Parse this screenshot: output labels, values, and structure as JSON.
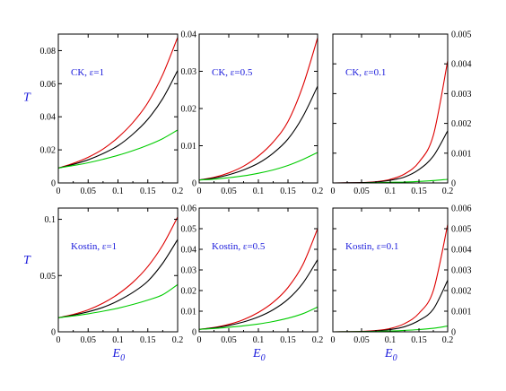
{
  "colors": {
    "red": "#dd0000",
    "black": "#000000",
    "green": "#00cc00",
    "label": "#1a1adb"
  },
  "chart_data": [
    {
      "type": "line",
      "annotation": "CK, ε=1",
      "xlim": [
        0,
        0.2
      ],
      "ylim": [
        0,
        0.09
      ],
      "xticks": [
        0,
        0.05,
        0.1,
        0.15,
        0.2
      ],
      "xtick_labels": [
        "0",
        "0.05",
        "0.1",
        "0.15",
        "0.2"
      ],
      "yticks": [
        0,
        0.02,
        0.04,
        0.06,
        0.08
      ],
      "ytick_labels": [
        "0",
        "0.02",
        "0.04",
        "0.06",
        "0.08"
      ],
      "ytick_side": "left",
      "ylabel": "T",
      "xlabel": "",
      "x": [
        0,
        0.025,
        0.05,
        0.075,
        0.1,
        0.125,
        0.15,
        0.175,
        0.2
      ],
      "series": [
        {
          "color": "red",
          "values": [
            0.009,
            0.0118,
            0.0155,
            0.0205,
            0.0275,
            0.0365,
            0.0485,
            0.0655,
            0.088
          ]
        },
        {
          "color": "black",
          "values": [
            0.009,
            0.0112,
            0.014,
            0.0178,
            0.0225,
            0.0295,
            0.0385,
            0.051,
            0.068
          ]
        },
        {
          "color": "green",
          "values": [
            0.009,
            0.0105,
            0.0122,
            0.0143,
            0.0167,
            0.0195,
            0.0228,
            0.0268,
            0.032
          ]
        }
      ]
    },
    {
      "type": "line",
      "annotation": "CK, ε=0.5",
      "xlim": [
        0,
        0.2
      ],
      "ylim": [
        0,
        0.04
      ],
      "xticks": [
        0,
        0.05,
        0.1,
        0.15,
        0.2
      ],
      "xtick_labels": [
        "0",
        "0.05",
        "0.1",
        "0.15",
        "0.2"
      ],
      "yticks": [
        0,
        0.01,
        0.02,
        0.03,
        0.04
      ],
      "ytick_labels": [
        "0",
        "0.01",
        "0.02",
        "0.03",
        "0.04"
      ],
      "ytick_side": "left",
      "ylabel": "",
      "xlabel": "",
      "x": [
        0,
        0.025,
        0.05,
        0.075,
        0.1,
        0.125,
        0.15,
        0.175,
        0.2
      ],
      "series": [
        {
          "color": "red",
          "values": [
            0.0008,
            0.0015,
            0.0027,
            0.0045,
            0.0072,
            0.011,
            0.0165,
            0.026,
            0.039
          ]
        },
        {
          "color": "black",
          "values": [
            0.0008,
            0.0013,
            0.0022,
            0.0035,
            0.0053,
            0.008,
            0.0118,
            0.0178,
            0.026
          ]
        },
        {
          "color": "green",
          "values": [
            0.0008,
            0.001,
            0.0014,
            0.0019,
            0.0026,
            0.0035,
            0.0047,
            0.0063,
            0.0082
          ]
        }
      ]
    },
    {
      "type": "line",
      "annotation": "CK, ε=0.1",
      "xlim": [
        0,
        0.2
      ],
      "ylim": [
        0,
        0.005
      ],
      "xticks": [
        0,
        0.05,
        0.1,
        0.15,
        0.2
      ],
      "xtick_labels": [
        "0",
        "0.05",
        "0.1",
        "0.15",
        "0.2"
      ],
      "yticks": [
        0,
        0.001,
        0.002,
        0.003,
        0.004,
        0.005
      ],
      "ytick_labels": [
        "0",
        "0.001",
        "0.002",
        "0.003",
        "0.004",
        "0.005"
      ],
      "ytick_side": "right",
      "ylabel": "",
      "xlabel": "",
      "x": [
        0,
        0.05,
        0.075,
        0.1,
        0.125,
        0.15,
        0.175,
        0.2
      ],
      "series": [
        {
          "color": "red",
          "values": [
            0,
            1e-05,
            4e-05,
            0.00012,
            0.0003,
            0.0007,
            0.0016,
            0.0041
          ]
        },
        {
          "color": "black",
          "values": [
            0,
            1e-05,
            3e-05,
            9e-05,
            0.0002,
            0.00045,
            0.0009,
            0.00175
          ]
        },
        {
          "color": "green",
          "values": [
            0,
            0,
            1e-05,
            2e-05,
            3e-05,
            5e-05,
            8e-05,
            0.00012
          ]
        }
      ]
    },
    {
      "type": "line",
      "annotation": "Kostin, ε=1",
      "xlim": [
        0,
        0.2
      ],
      "ylim": [
        0,
        0.11
      ],
      "xticks": [
        0,
        0.05,
        0.1,
        0.15,
        0.2
      ],
      "xtick_labels": [
        "0",
        "0.05",
        "0.1",
        "0.15",
        "0.2"
      ],
      "yticks": [
        0,
        0.05,
        0.1
      ],
      "ytick_labels": [
        "0",
        "0.05",
        "0.1"
      ],
      "ytick_side": "left",
      "ylabel": "T",
      "xlabel": "E0",
      "x": [
        0,
        0.025,
        0.05,
        0.075,
        0.1,
        0.125,
        0.15,
        0.175,
        0.2
      ],
      "series": [
        {
          "color": "red",
          "values": [
            0.0125,
            0.0155,
            0.0195,
            0.0255,
            0.0335,
            0.044,
            0.058,
            0.077,
            0.102
          ]
        },
        {
          "color": "black",
          "values": [
            0.0125,
            0.0148,
            0.0178,
            0.0218,
            0.0275,
            0.035,
            0.045,
            0.061,
            0.082
          ]
        },
        {
          "color": "green",
          "values": [
            0.0125,
            0.0141,
            0.016,
            0.0183,
            0.021,
            0.0243,
            0.0282,
            0.033,
            0.042
          ]
        }
      ]
    },
    {
      "type": "line",
      "annotation": "Kostin, ε=0.5",
      "xlim": [
        0,
        0.2
      ],
      "ylim": [
        0,
        0.06
      ],
      "xticks": [
        0,
        0.05,
        0.1,
        0.15,
        0.2
      ],
      "xtick_labels": [
        "0",
        "0.05",
        "0.1",
        "0.15",
        "0.2"
      ],
      "yticks": [
        0,
        0.01,
        0.02,
        0.03,
        0.04,
        0.05,
        0.06
      ],
      "ytick_labels": [
        "0",
        "0.01",
        "0.02",
        "0.03",
        "0.04",
        "0.05",
        "0.06"
      ],
      "ytick_side": "left",
      "ylabel": "",
      "xlabel": "E0",
      "x": [
        0,
        0.025,
        0.05,
        0.075,
        0.1,
        0.125,
        0.15,
        0.175,
        0.2
      ],
      "series": [
        {
          "color": "red",
          "values": [
            0.0012,
            0.0021,
            0.0036,
            0.0059,
            0.0094,
            0.0143,
            0.0215,
            0.0325,
            0.05
          ]
        },
        {
          "color": "black",
          "values": [
            0.0012,
            0.0019,
            0.0031,
            0.0048,
            0.0072,
            0.0107,
            0.0158,
            0.0235,
            0.035
          ]
        },
        {
          "color": "green",
          "values": [
            0.0012,
            0.0016,
            0.0022,
            0.0029,
            0.0038,
            0.005,
            0.0066,
            0.0088,
            0.012
          ]
        }
      ]
    },
    {
      "type": "line",
      "annotation": "Kostin, ε=0.1",
      "xlim": [
        0,
        0.2
      ],
      "ylim": [
        0,
        0.006
      ],
      "xticks": [
        0,
        0.05,
        0.1,
        0.15,
        0.2
      ],
      "xtick_labels": [
        "0",
        "0.05",
        "0.1",
        "0.15",
        "0.2"
      ],
      "yticks": [
        0,
        0.001,
        0.002,
        0.003,
        0.004,
        0.005,
        0.006
      ],
      "ytick_labels": [
        "0",
        "0.001",
        "0.002",
        "0.003",
        "0.004",
        "0.005",
        "0.006"
      ],
      "ytick_side": "right",
      "ylabel": "",
      "xlabel": "E0",
      "x": [
        0,
        0.05,
        0.075,
        0.1,
        0.125,
        0.15,
        0.175,
        0.2
      ],
      "series": [
        {
          "color": "red",
          "values": [
            0,
            2e-05,
            6e-05,
            0.00016,
            0.0004,
            0.0009,
            0.002,
            0.0052
          ]
        },
        {
          "color": "black",
          "values": [
            0,
            1e-05,
            4e-05,
            0.00011,
            0.00025,
            0.00055,
            0.0011,
            0.0025
          ]
        },
        {
          "color": "green",
          "values": [
            0,
            1e-05,
            2e-05,
            4e-05,
            7e-05,
            0.00011,
            0.00017,
            0.00028
          ]
        }
      ]
    }
  ]
}
